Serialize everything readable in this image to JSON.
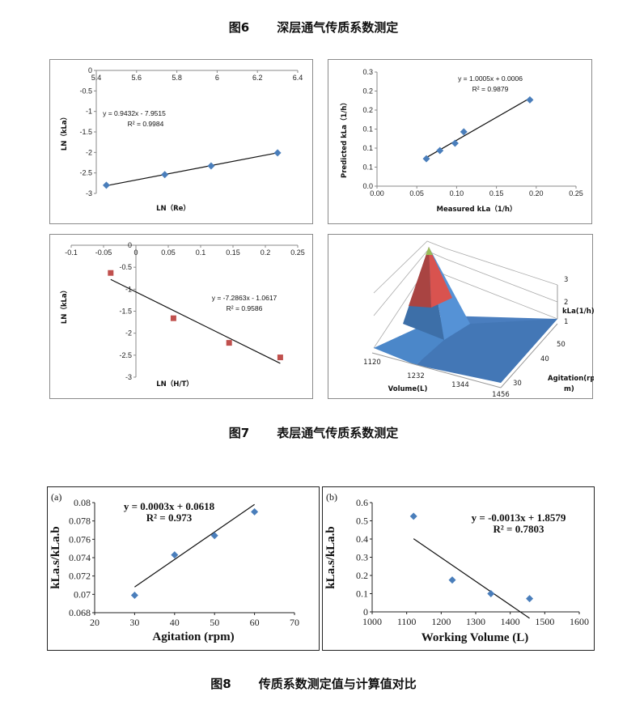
{
  "captions": {
    "fig6": {
      "num": "图6",
      "text": "深层通气传质系数测定"
    },
    "fig7": {
      "num": "图7",
      "text": "表层通气传质系数测定"
    },
    "fig8": {
      "num": "图8",
      "text": "传质系数测定值与计算值对比"
    }
  },
  "chart_data": [
    {
      "id": "chart1",
      "type": "scatter",
      "title": "",
      "xlabel": "LN（Re）",
      "ylabel": "LN（kLa）",
      "xlim": [
        5.4,
        6.4
      ],
      "ylim": [
        -3,
        0
      ],
      "xticks": [
        "5.4",
        "5.6",
        "5.8",
        "6",
        "6.2",
        "6.4"
      ],
      "yticks": [
        "0",
        "-0.5",
        "-1",
        "-1.5",
        "-2",
        "-2.5",
        "-3"
      ],
      "x": [
        5.45,
        5.74,
        5.97,
        6.3
      ],
      "y": [
        -2.8,
        -2.54,
        -2.33,
        -2.01
      ],
      "marker": "diamond",
      "color": "#4a7ebb",
      "trendline": {
        "slope": 0.9432,
        "intercept": -7.9515
      },
      "equation": "y = 0.9432x - 7.9515",
      "r2": "R² = 0.9984",
      "grid": false
    },
    {
      "id": "chart2",
      "type": "scatter",
      "xlabel": "Measured kLa（1/h）",
      "ylabel": "Predicted kLa（1/h）",
      "xlim": [
        0,
        0.25
      ],
      "ylim": [
        0,
        0.25
      ],
      "xticks": [
        "0.00",
        "0.05",
        "0.10",
        "0.15",
        "0.20",
        "0.25"
      ],
      "yticks": [
        "0.0",
        "0.1",
        "0.1",
        "0.1",
        "0.2",
        "0.2",
        "0.3"
      ],
      "x": [
        0.062,
        0.079,
        0.098,
        0.109,
        0.192
      ],
      "y": [
        0.06,
        0.078,
        0.094,
        0.119,
        0.189
      ],
      "marker": "diamond",
      "color": "#4a7ebb",
      "trendline": {
        "slope": 1.0005,
        "intercept": 0.0006
      },
      "equation": "y = 1.0005x + 0.0006",
      "r2": "R² = 0.9879",
      "grid": false
    },
    {
      "id": "chart3",
      "type": "scatter",
      "xlabel": "LN（H/T）",
      "ylabel": "LN（kLa）",
      "xlim": [
        -0.1,
        0.25
      ],
      "ylim": [
        -3,
        0
      ],
      "xticks": [
        "-0.1",
        "-0.05",
        "0",
        "0.05",
        "0.1",
        "0.15",
        "0.2",
        "0.25"
      ],
      "yticks": [
        "0",
        "-0.5",
        "-1",
        "-1.5",
        "-2",
        "-2.5",
        "-3"
      ],
      "x": [
        -0.039,
        0.058,
        0.144,
        0.223
      ],
      "y": [
        -0.63,
        -1.66,
        -2.22,
        -2.55
      ],
      "marker": "square",
      "color": "#c0504d",
      "trendline": {
        "slope": -7.2863,
        "intercept": -1.0617
      },
      "equation": "y = -7.2863x - 1.0617",
      "r2": "R² = 0.9586",
      "grid": false
    },
    {
      "id": "chart4",
      "type": "surface",
      "xlabel": "Volume(L)",
      "ylabel": "Agitation(rpm)",
      "zlabel": "kLa(1/h)",
      "xticks": [
        "1120",
        "1232",
        "1344",
        "1456"
      ],
      "yticks": [
        "30",
        "40",
        "50"
      ],
      "zticks": [
        "1",
        "2",
        "3"
      ],
      "peak": {
        "volume": 1120,
        "agitation": 50,
        "kla": 3.2
      },
      "bands": [
        {
          "range": "0-1",
          "color": "#4f81bd"
        },
        {
          "range": "1-2",
          "color": "#4f81bd"
        },
        {
          "range": "2-3",
          "color": "#c0504d"
        },
        {
          "range": "3+",
          "color": "#9bbb59"
        }
      ]
    },
    {
      "id": "chart5",
      "type": "scatter",
      "panel_label": "(a)",
      "xlabel": "Agitation (rpm)",
      "ylabel": "kLa.s/kLa.b",
      "xlim": [
        20,
        70
      ],
      "ylim": [
        0.068,
        0.08
      ],
      "xticks": [
        "20",
        "30",
        "40",
        "50",
        "60",
        "70"
      ],
      "yticks": [
        "0.08",
        "0.078",
        "0.076",
        "0.074",
        "0.072",
        "0.07",
        "0.068"
      ],
      "x": [
        30,
        40,
        50,
        60
      ],
      "y": [
        0.0699,
        0.0743,
        0.0764,
        0.079
      ],
      "marker": "diamond",
      "color": "#4a7ebb",
      "trendline": {
        "slope": 0.0003,
        "intercept": 0.0618,
        "x_from": 30,
        "x_to": 60
      },
      "equation": "y = 0.0003x + 0.0618",
      "r2": "R² = 0.973",
      "grid": false
    },
    {
      "id": "chart6",
      "type": "scatter",
      "panel_label": "(b)",
      "xlabel": "Working Volume (L)",
      "ylabel": "kLa.s/kLa.b",
      "xlim": [
        1000,
        1600
      ],
      "ylim": [
        0,
        0.6
      ],
      "xticks": [
        "1000",
        "1100",
        "1200",
        "1300",
        "1400",
        "1500",
        "1600"
      ],
      "yticks": [
        "0.6",
        "0.5",
        "0.4",
        "0.3",
        "0.2",
        "0.1",
        "0"
      ],
      "x": [
        1120,
        1232,
        1344,
        1456
      ],
      "y": [
        0.525,
        0.175,
        0.1,
        0.073
      ],
      "marker": "diamond",
      "color": "#4a7ebb",
      "trendline": {
        "slope": -0.0013,
        "intercept": 1.8579,
        "x_from": 1120,
        "x_to": 1456
      },
      "equation": "y = -0.0013x + 1.8579",
      "r2": "R² = 0.7803",
      "grid": false
    }
  ]
}
